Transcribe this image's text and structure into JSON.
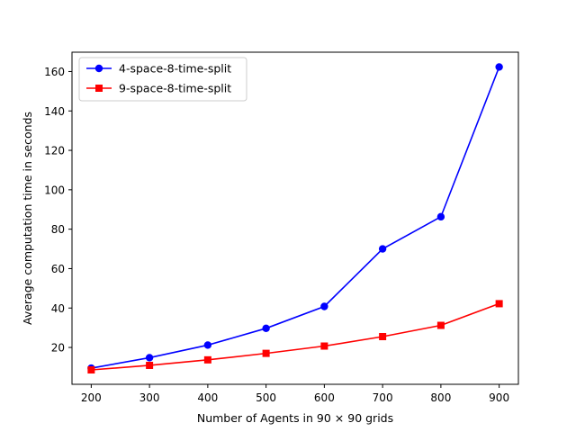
{
  "chart_data": {
    "type": "line",
    "title": "",
    "xlabel": "Number of Agents in 90 × 90 grids",
    "ylabel": "Average computation time in seconds",
    "x": [
      200,
      300,
      400,
      500,
      600,
      700,
      800,
      900
    ],
    "xticks": [
      200,
      300,
      400,
      500,
      600,
      700,
      800,
      900
    ],
    "yticks": [
      20,
      40,
      60,
      80,
      100,
      120,
      140,
      160
    ],
    "xlim": [
      167,
      933
    ],
    "ylim": [
      1.3,
      169.8
    ],
    "grid": false,
    "legend_position": "top-left",
    "series": [
      {
        "name": "4-space-8-time-split",
        "color": "#0000ff",
        "marker": "circle",
        "values": [
          9.5,
          14.8,
          21.2,
          29.7,
          40.8,
          70.0,
          86.3,
          162.3
        ]
      },
      {
        "name": "9-space-8-time-split",
        "color": "#ff0000",
        "marker": "square",
        "values": [
          8.6,
          10.9,
          13.7,
          17.0,
          20.7,
          25.5,
          31.2,
          42.2
        ]
      }
    ]
  }
}
